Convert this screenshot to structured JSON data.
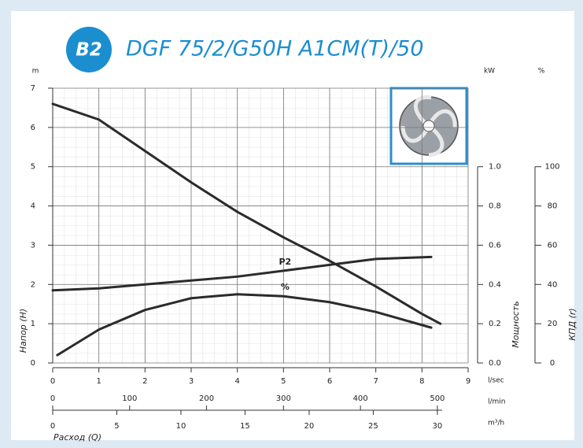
{
  "chart_data": {
    "type": "line",
    "badge": "B2",
    "title": "DGF 75/2/G50H A1CM(T)/50",
    "ylabel": "Напор (H)",
    "yunit": "m",
    "ylim": [
      0,
      7
    ],
    "yticks": [
      0,
      1,
      2,
      3,
      4,
      5,
      6,
      7
    ],
    "y2label": "Мощность",
    "y2unit": "kW",
    "y2lim": [
      0,
      1.4
    ],
    "y2ticks": [
      {
        "value": 0,
        "label": "0.0"
      },
      0.2,
      0.4,
      0.6,
      0.8,
      {
        "value": 1,
        "label": "1.0"
      }
    ],
    "y3label": "КПД (r)",
    "y3unit": "%",
    "y3lim": [
      0,
      140
    ],
    "y3ticks": [
      0,
      20,
      40,
      60,
      80,
      100
    ],
    "xlabel": "Расход (Q)",
    "xunit": "l/sec",
    "xlim": [
      0,
      9
    ],
    "xticks": [
      0,
      1,
      2,
      3,
      4,
      5,
      6,
      7,
      8,
      9
    ],
    "x2unit": "l/min",
    "x2lim": [
      0,
      540
    ],
    "x2ticks": [
      0,
      100,
      200,
      300,
      400,
      500
    ],
    "x3unit": "m³/h",
    "x3lim": [
      0,
      32.4
    ],
    "x3ticks": [
      0,
      5,
      10,
      15,
      20,
      25,
      30
    ],
    "grid": true,
    "series": [
      {
        "color": "#2b2b2b",
        "x": [
          0,
          1,
          2,
          3,
          4,
          5,
          6,
          7,
          8,
          8.4
        ],
        "values": [
          6.6,
          6.2,
          5.4,
          4.6,
          3.85,
          3.2,
          2.6,
          1.95,
          1.25,
          1.0
        ]
      },
      {
        "name": "P2",
        "axis": "y2",
        "color": "#2b2b2b",
        "x": [
          0,
          1,
          2,
          3,
          4,
          5,
          6,
          7,
          8.2
        ],
        "values": [
          0.37,
          0.38,
          0.4,
          0.42,
          0.44,
          0.47,
          0.5,
          0.53,
          0.54
        ]
      },
      {
        "name": "%",
        "axis": "y3",
        "color": "#2b2b2b",
        "x": [
          0.1,
          1,
          2,
          3,
          4,
          5,
          6,
          7,
          8.2
        ],
        "values": [
          4,
          17,
          27,
          33,
          35,
          34,
          31,
          26,
          18
        ]
      }
    ]
  }
}
